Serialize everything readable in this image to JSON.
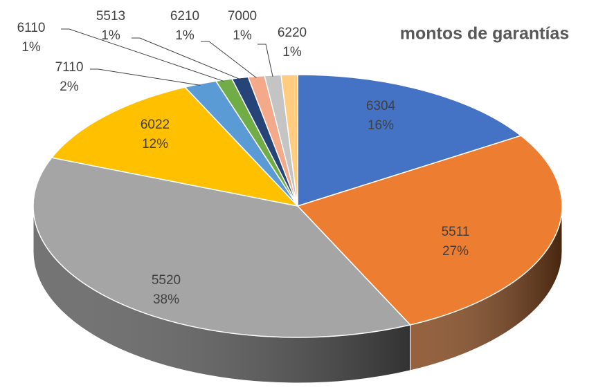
{
  "chart_data": {
    "type": "pie3d",
    "title": "montos de garantías",
    "categories": [
      "6304",
      "5511",
      "5520",
      "6022",
      "7110",
      "6110",
      "5513",
      "6210",
      "7000",
      "6220"
    ],
    "values": [
      16,
      27,
      38,
      12,
      2,
      1,
      1,
      1,
      1,
      1
    ],
    "value_labels": [
      "16%",
      "27%",
      "38%",
      "12%",
      "2%",
      "1%",
      "1%",
      "1%",
      "1%",
      "1%"
    ],
    "colors": [
      "#4472c4",
      "#ed7d31",
      "#a5a5a5",
      "#ffc000",
      "#5b9bd5",
      "#70ad47",
      "#264478",
      "#f4a98a",
      "#c4c4c4",
      "#ffcc80"
    ]
  }
}
